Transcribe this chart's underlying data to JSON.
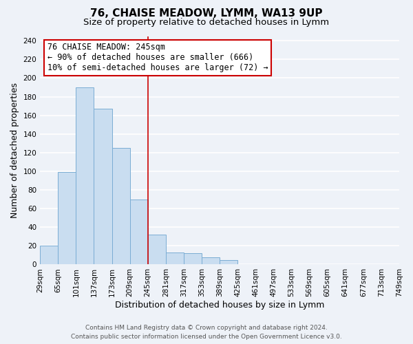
{
  "title": "76, CHAISE MEADOW, LYMM, WA13 9UP",
  "subtitle": "Size of property relative to detached houses in Lymm",
  "xlabel": "Distribution of detached houses by size in Lymm",
  "ylabel": "Number of detached properties",
  "bin_labels": [
    "29sqm",
    "65sqm",
    "101sqm",
    "137sqm",
    "173sqm",
    "209sqm",
    "245sqm",
    "281sqm",
    "317sqm",
    "353sqm",
    "389sqm",
    "425sqm",
    "461sqm",
    "497sqm",
    "533sqm",
    "569sqm",
    "605sqm",
    "641sqm",
    "677sqm",
    "713sqm",
    "749sqm"
  ],
  "bar_heights": [
    20,
    99,
    190,
    167,
    125,
    70,
    32,
    13,
    12,
    8,
    5,
    0,
    0,
    0,
    0,
    0,
    0,
    0,
    0,
    0
  ],
  "bar_color": "#c9ddf0",
  "bar_edge_color": "#7aadd4",
  "highlight_line_color": "#cc0000",
  "annotation_line1": "76 CHAISE MEADOW: 245sqm",
  "annotation_line2": "← 90% of detached houses are smaller (666)",
  "annotation_line3": "10% of semi-detached houses are larger (72) →",
  "annotation_box_edge_color": "#cc0000",
  "annotation_box_face_color": "#ffffff",
  "ylim": [
    0,
    245
  ],
  "yticks": [
    0,
    20,
    40,
    60,
    80,
    100,
    120,
    140,
    160,
    180,
    200,
    220,
    240
  ],
  "footer_line1": "Contains HM Land Registry data © Crown copyright and database right 2024.",
  "footer_line2": "Contains public sector information licensed under the Open Government Licence v3.0.",
  "background_color": "#eef2f8",
  "grid_color": "#ffffff",
  "title_fontsize": 11,
  "subtitle_fontsize": 9.5,
  "axis_label_fontsize": 9,
  "tick_fontsize": 7.5,
  "annotation_fontsize": 8.5,
  "footer_fontsize": 6.5,
  "highlight_bar_index": 6
}
